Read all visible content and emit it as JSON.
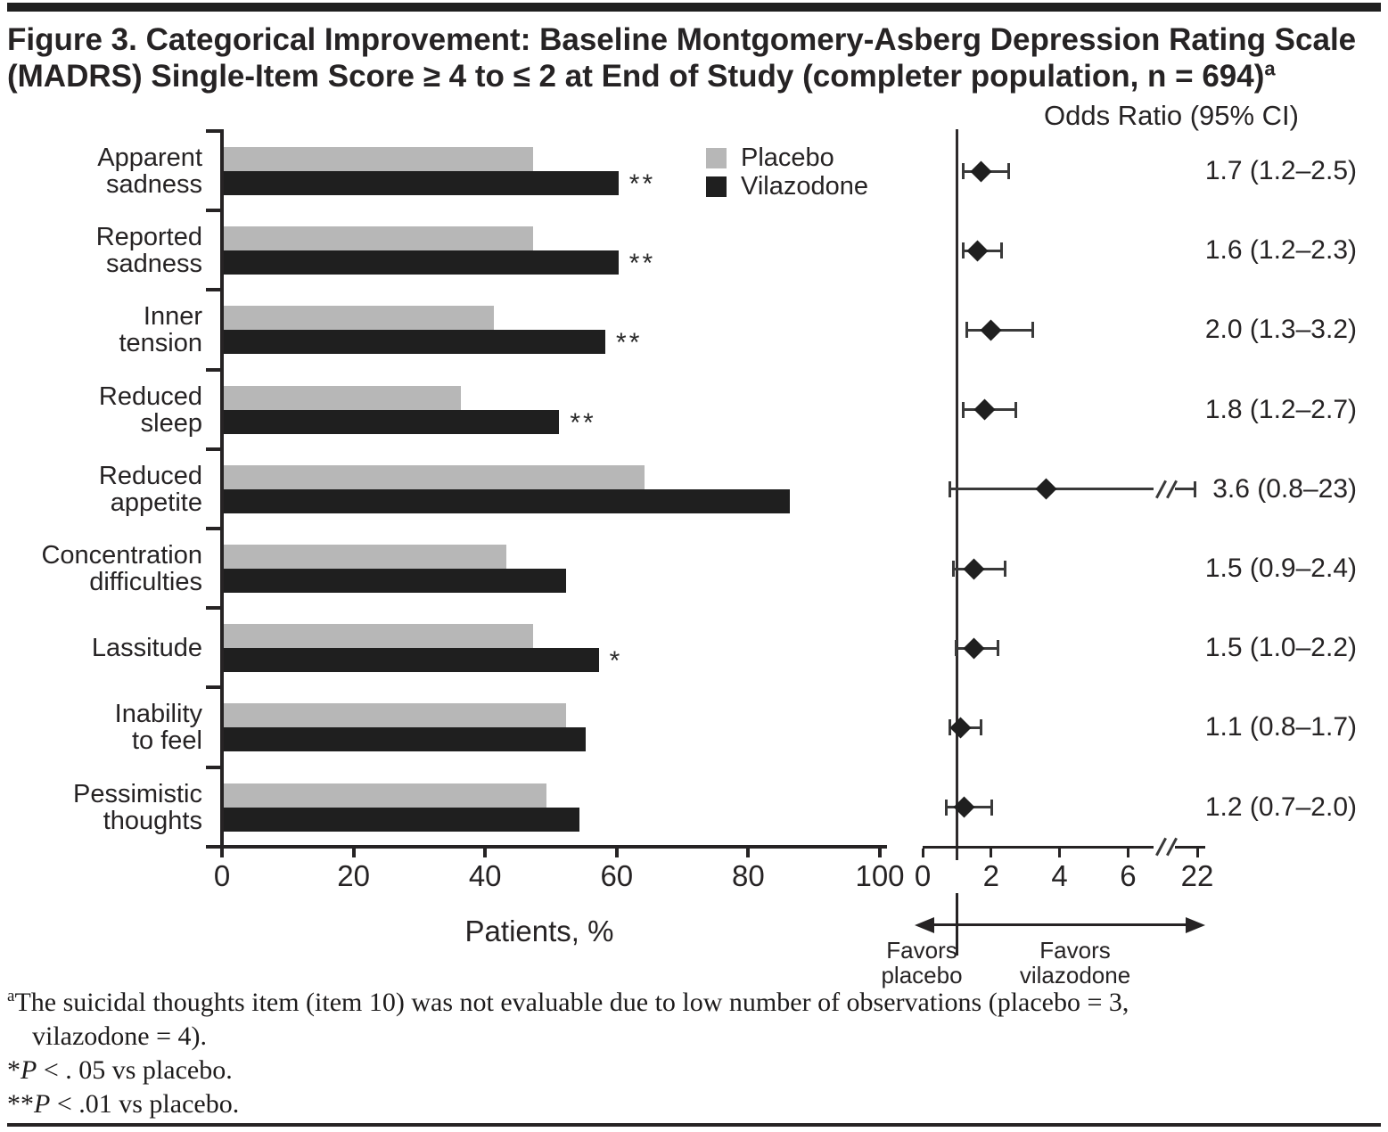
{
  "title": {
    "line1": "Figure 3. Categorical Improvement: Baseline Montgomery-Asberg Depression Rating Scale",
    "line2": "(MADRS) Single-Item Score ≥ 4 to ≤ 2 at End of Study (completer population, n = 694)",
    "superscript": "a"
  },
  "legend": {
    "items": [
      {
        "label": "Placebo",
        "color": "#b7b7b7"
      },
      {
        "label": "Vilazodone",
        "color": "#1f1f1f"
      }
    ]
  },
  "chart_data": {
    "type": "bar",
    "orientation": "horizontal",
    "xlabel": "Patients, %",
    "xlim": [
      0,
      100
    ],
    "xticks": [
      0,
      20,
      40,
      60,
      80,
      100
    ],
    "categories": [
      "Apparent sadness",
      "Reported sadness",
      "Inner tension",
      "Reduced sleep",
      "Reduced appetite",
      "Concentration difficulties",
      "Lassitude",
      "Inability to feel",
      "Pessimistic thoughts"
    ],
    "category_label_lines": [
      [
        "Apparent",
        "sadness"
      ],
      [
        "Reported",
        "sadness"
      ],
      [
        "Inner",
        "tension"
      ],
      [
        "Reduced",
        "sleep"
      ],
      [
        "Reduced",
        "appetite"
      ],
      [
        "Concentration",
        "difficulties"
      ],
      [
        "Lassitude"
      ],
      [
        "Inability",
        "to feel"
      ],
      [
        "Pessimistic",
        "thoughts"
      ]
    ],
    "series": [
      {
        "name": "Placebo",
        "color": "#b7b7b7",
        "values": [
          47,
          47,
          41,
          36,
          64,
          43,
          47,
          52,
          49
        ]
      },
      {
        "name": "Vilazodone",
        "color": "#1f1f1f",
        "values": [
          60,
          60,
          58,
          51,
          86,
          52,
          57,
          55,
          54
        ]
      }
    ],
    "significance_markers": [
      "**",
      "**",
      "**",
      "**",
      "",
      "",
      "*",
      "",
      ""
    ]
  },
  "forest_plot": {
    "header": "Odds Ratio (95% CI)",
    "xticks": [
      0,
      2,
      4,
      6,
      22
    ],
    "axis_break_after": 6,
    "reference_line": 1,
    "rows": [
      {
        "label": "1.7 (1.2–2.5)",
        "or": 1.7,
        "ci_low": 1.2,
        "ci_high": 2.5,
        "ci_high_offscale": false
      },
      {
        "label": "1.6 (1.2–2.3)",
        "or": 1.6,
        "ci_low": 1.2,
        "ci_high": 2.3,
        "ci_high_offscale": false
      },
      {
        "label": "2.0 (1.3–3.2)",
        "or": 2.0,
        "ci_low": 1.3,
        "ci_high": 3.2,
        "ci_high_offscale": false
      },
      {
        "label": "1.8 (1.2–2.7)",
        "or": 1.8,
        "ci_low": 1.2,
        "ci_high": 2.7,
        "ci_high_offscale": false
      },
      {
        "label": "3.6 (0.8–23)",
        "or": 3.6,
        "ci_low": 0.8,
        "ci_high": 23,
        "ci_high_offscale": true
      },
      {
        "label": "1.5 (0.9–2.4)",
        "or": 1.5,
        "ci_low": 0.9,
        "ci_high": 2.4,
        "ci_high_offscale": false
      },
      {
        "label": "1.5 (1.0–2.2)",
        "or": 1.5,
        "ci_low": 1.0,
        "ci_high": 2.2,
        "ci_high_offscale": false
      },
      {
        "label": "1.1 (0.8–1.7)",
        "or": 1.1,
        "ci_low": 0.8,
        "ci_high": 1.7,
        "ci_high_offscale": false
      },
      {
        "label": "1.2 (0.7–2.0)",
        "or": 1.2,
        "ci_low": 0.7,
        "ci_high": 2.0,
        "ci_high_offscale": false
      }
    ],
    "favors_left": [
      "Favors",
      "placebo"
    ],
    "favors_right": [
      "Favors",
      "vilazodone"
    ]
  },
  "footnotes": {
    "line1_sup": "a",
    "line1_text": "The suicidal thoughts item (item 10) was not evaluable due to low number of observations (placebo = 3,",
    "line2_text": "vilazodone = 4).",
    "line3_prefix": "*",
    "line3_italic": "P",
    "line3_text": " < . 05 vs placebo.",
    "line4_prefix": "**",
    "line4_italic": "P",
    "line4_text": " < .01 vs placebo."
  }
}
